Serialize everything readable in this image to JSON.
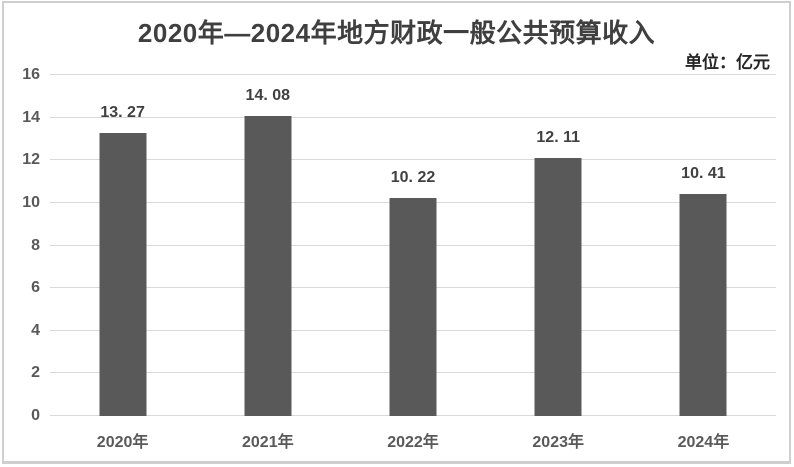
{
  "header": {
    "title": "2020年—2024年地方财政一般公共预算收入",
    "unit_label": "单位：亿元"
  },
  "chart_data": {
    "type": "bar",
    "title": "2020年—2024年地方财政一般公共预算收入",
    "unit": "亿元",
    "categories": [
      "2020年",
      "2021年",
      "2022年",
      "2023年",
      "2024年"
    ],
    "values": [
      13.27,
      14.08,
      10.22,
      12.11,
      10.41
    ],
    "value_labels": [
      "13. 27",
      "14. 08",
      "10. 22",
      "12. 11",
      "10. 41"
    ],
    "xlabel": "",
    "ylabel": "",
    "ylim": [
      0,
      16
    ],
    "yticks": [
      0,
      2,
      4,
      6,
      8,
      10,
      12,
      14,
      16
    ],
    "grid": true,
    "legend": false,
    "colors": {
      "bar": "#595959",
      "gridline": "#d9d9d9",
      "title": "#3f3f3f",
      "unit_label": "#262626",
      "tick_label": "#595959",
      "data_label": "#404040",
      "frame_border": "#cfcfcf",
      "background": "#ffffff"
    }
  }
}
